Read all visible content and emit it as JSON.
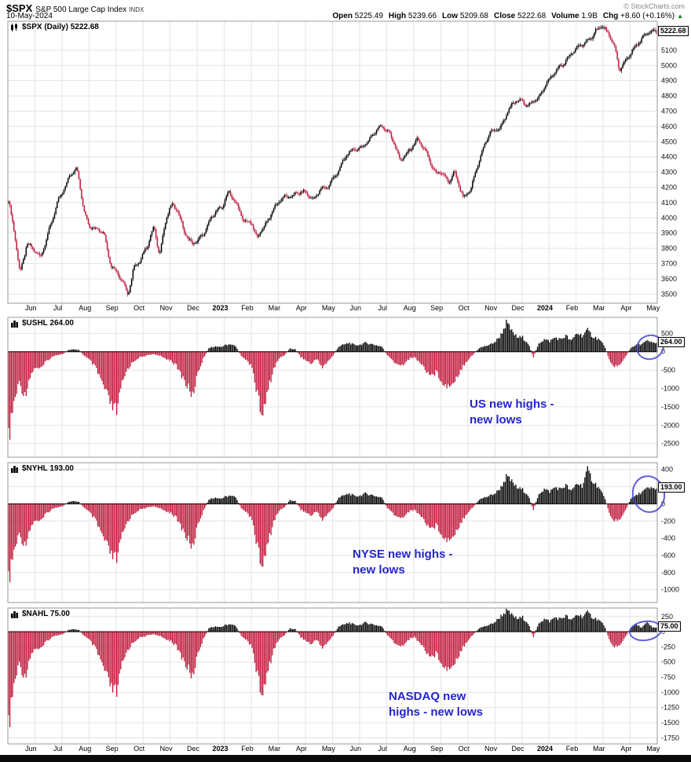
{
  "header": {
    "symbol": "$SPX",
    "name": "S&P 500 Large Cap Index",
    "exchange": "INDX",
    "date": "10-May-2024",
    "copyright": "© StockCharts.com",
    "quote": {
      "pairs": [
        {
          "label": "Open",
          "value": "5225.49"
        },
        {
          "label": "High",
          "value": "5239.66"
        },
        {
          "label": "Low",
          "value": "5209.68"
        },
        {
          "label": "Close",
          "value": "5222.68"
        },
        {
          "label": "Volume",
          "value": "1.9B"
        },
        {
          "label": "Chg",
          "value": "+8.60 (+0.16%)"
        }
      ],
      "arrow": "▲"
    }
  },
  "months": [
    "Jun",
    "Jul",
    "Aug",
    "Sep",
    "Oct",
    "Nov",
    "Dec",
    "2023",
    "Feb",
    "Mar",
    "Apr",
    "May",
    "Jun",
    "Jul",
    "Aug",
    "Sep",
    "Oct",
    "Nov",
    "Dec",
    "2024",
    "Feb",
    "Mar",
    "Apr",
    "May"
  ],
  "panels": {
    "spx": {
      "legend": "$SPX (Daily) 5222.68",
      "last_label": "5222.68"
    },
    "ushl": {
      "legend": "$USHL 264.00",
      "last_label": "264.00"
    },
    "nyhl": {
      "legend": "$NYHL 193.00",
      "last_label": "193.00"
    },
    "nahl": {
      "legend": "$NAHL 75.00",
      "last_label": "75.00"
    }
  },
  "annotations": {
    "ushl": {
      "line1": "US new highs -",
      "line2": "new lows"
    },
    "nyhl": {
      "line1": "NYSE new highs -",
      "line2": "new lows"
    },
    "nahl": {
      "line1": "NASDAQ new",
      "line2": "highs - new lows"
    }
  },
  "colors": {
    "up": "#000000",
    "down": "#bf1638",
    "grid": "#e4e4e4",
    "border": "#999999",
    "zero_line": "#000000",
    "annotation": "#2424cf",
    "ellipse": "#4444d4",
    "arrow_green": "#008800"
  },
  "chart_data": [
    {
      "id": "spx",
      "type": "candlestick",
      "title": "$SPX S&P 500 Large Cap Index (Daily)",
      "x_start": "Jun-2022",
      "x_end": "May-2024",
      "last": 5222.68,
      "day_ohlc": {
        "open": 5225.49,
        "high": 5239.66,
        "low": 5209.68,
        "close": 5222.68
      },
      "y_range": [
        3440,
        5290
      ],
      "y_ticks": [
        5100,
        5000,
        4900,
        4800,
        4700,
        4600,
        4500,
        4400,
        4300,
        4200,
        4100,
        4000,
        3900,
        3800,
        3700,
        3600,
        3500
      ],
      "anchors": [
        [
          0,
          4130
        ],
        [
          0.25,
          3900
        ],
        [
          0.45,
          3640
        ],
        [
          0.7,
          3820
        ],
        [
          0.95,
          3790
        ],
        [
          1.2,
          3750
        ],
        [
          1.5,
          3900
        ],
        [
          1.9,
          4130
        ],
        [
          2.3,
          4280
        ],
        [
          2.55,
          4320
        ],
        [
          2.8,
          4060
        ],
        [
          3.0,
          3955
        ],
        [
          3.3,
          3920
        ],
        [
          3.55,
          3900
        ],
        [
          3.8,
          3700
        ],
        [
          4.0,
          3650
        ],
        [
          4.2,
          3590
        ],
        [
          4.45,
          3495
        ],
        [
          4.65,
          3680
        ],
        [
          4.9,
          3720
        ],
        [
          5.15,
          3810
        ],
        [
          5.4,
          3950
        ],
        [
          5.6,
          3760
        ],
        [
          5.85,
          3990
        ],
        [
          6.05,
          4080
        ],
        [
          6.25,
          4070
        ],
        [
          6.55,
          3895
        ],
        [
          6.8,
          3820
        ],
        [
          7.0,
          3850
        ],
        [
          7.3,
          3920
        ],
        [
          7.6,
          4020
        ],
        [
          7.9,
          4070
        ],
        [
          8.15,
          4180
        ],
        [
          8.45,
          4080
        ],
        [
          8.7,
          3985
        ],
        [
          9.0,
          3975
        ],
        [
          9.2,
          3860
        ],
        [
          9.5,
          3950
        ],
        [
          9.8,
          4060
        ],
        [
          10.1,
          4120
        ],
        [
          10.4,
          4140
        ],
        [
          10.7,
          4170
        ],
        [
          11.0,
          4160
        ],
        [
          11.25,
          4120
        ],
        [
          11.55,
          4190
        ],
        [
          11.85,
          4200
        ],
        [
          12.1,
          4280
        ],
        [
          12.5,
          4410
        ],
        [
          12.9,
          4450
        ],
        [
          13.3,
          4500
        ],
        [
          13.8,
          4607
        ],
        [
          14.1,
          4570
        ],
        [
          14.5,
          4370
        ],
        [
          14.8,
          4440
        ],
        [
          15.1,
          4510
        ],
        [
          15.4,
          4450
        ],
        [
          15.8,
          4300
        ],
        [
          16.0,
          4290
        ],
        [
          16.3,
          4230
        ],
        [
          16.5,
          4310
        ],
        [
          16.85,
          4117
        ],
        [
          17.1,
          4180
        ],
        [
          17.4,
          4380
        ],
        [
          17.8,
          4550
        ],
        [
          18.2,
          4600
        ],
        [
          18.5,
          4700
        ],
        [
          18.8,
          4770
        ],
        [
          19.0,
          4770
        ],
        [
          19.3,
          4740
        ],
        [
          19.6,
          4780
        ],
        [
          19.9,
          4890
        ],
        [
          20.2,
          4950
        ],
        [
          20.5,
          5000
        ],
        [
          20.8,
          5080
        ],
        [
          21.1,
          5120
        ],
        [
          21.4,
          5150
        ],
        [
          21.7,
          5230
        ],
        [
          21.95,
          5254
        ],
        [
          22.2,
          5200
        ],
        [
          22.45,
          5120
        ],
        [
          22.6,
          4967
        ],
        [
          22.85,
          5030
        ],
        [
          23.1,
          5100
        ],
        [
          23.4,
          5180
        ],
        [
          23.7,
          5210
        ],
        [
          23.95,
          5222.68
        ]
      ]
    },
    {
      "id": "ushl",
      "type": "bar",
      "title": "US new highs - new lows ($USHL)",
      "x_start": "Jun-2022",
      "x_end": "May-2024",
      "samples_per_month": 5,
      "last": 264,
      "y_range": [
        -2870,
        935
      ],
      "y_ticks": [
        500,
        0,
        -500,
        -1000,
        -1500,
        -2000,
        -2500
      ],
      "values": [
        -2600,
        -1500,
        -900,
        -1300,
        -700,
        -450,
        -500,
        -280,
        -160,
        -90,
        -70,
        40,
        80,
        50,
        -120,
        -250,
        -450,
        -800,
        -1200,
        -1600,
        -1750,
        -950,
        -500,
        -300,
        -180,
        -140,
        -90,
        -70,
        -130,
        -200,
        -250,
        -420,
        -700,
        -1000,
        -1300,
        -600,
        -200,
        100,
        160,
        130,
        190,
        230,
        150,
        -110,
        -260,
        -420,
        -1300,
        -1900,
        -1100,
        -500,
        -200,
        -100,
        90,
        70,
        -150,
        -260,
        -360,
        -200,
        -460,
        -300,
        -100,
        150,
        210,
        260,
        190,
        210,
        260,
        230,
        190,
        150,
        -110,
        -260,
        -410,
        -360,
        -210,
        -160,
        -310,
        -510,
        -700,
        -600,
        -820,
        -1050,
        -900,
        -700,
        -410,
        -210,
        -60,
        110,
        160,
        210,
        300,
        500,
        850,
        600,
        420,
        420,
        260,
        -160,
        260,
        360,
        310,
        420,
        360,
        470,
        310,
        550,
        480,
        620,
        450,
        380,
        210,
        -210,
        -460,
        -360,
        -160,
        110,
        190,
        230,
        310,
        264
      ]
    },
    {
      "id": "nyhl",
      "type": "bar",
      "title": "NYSE new highs - new lows ($NYHL)",
      "x_start": "Jun-2022",
      "x_end": "May-2024",
      "samples_per_month": 5,
      "last": 193,
      "y_range": [
        -1150,
        480
      ],
      "y_ticks": [
        400,
        200,
        0,
        -200,
        -400,
        -600,
        -800,
        -1000
      ],
      "values": [
        -980,
        -600,
        -380,
        -520,
        -300,
        -200,
        -220,
        -120,
        -70,
        -40,
        -30,
        20,
        40,
        25,
        -50,
        -110,
        -200,
        -350,
        -500,
        -650,
        -700,
        -400,
        -220,
        -130,
        -80,
        -60,
        -40,
        -30,
        -60,
        -90,
        -110,
        -180,
        -300,
        -430,
        -550,
        -250,
        -90,
        50,
        80,
        60,
        90,
        110,
        80,
        -50,
        -110,
        -180,
        -560,
        -800,
        -480,
        -220,
        -90,
        -40,
        45,
        35,
        -70,
        -110,
        -150,
        -90,
        -200,
        -130,
        -50,
        80,
        105,
        130,
        95,
        105,
        130,
        115,
        95,
        80,
        -55,
        -115,
        -180,
        -160,
        -95,
        -75,
        -135,
        -225,
        -310,
        -270,
        -360,
        -470,
        -400,
        -310,
        -185,
        -95,
        -30,
        55,
        80,
        105,
        135,
        210,
        340,
        280,
        200,
        180,
        115,
        -75,
        130,
        185,
        155,
        210,
        185,
        235,
        155,
        260,
        230,
        420,
        290,
        210,
        105,
        -105,
        -225,
        -185,
        -85,
        65,
        105,
        150,
        190,
        193
      ]
    },
    {
      "id": "nahl",
      "type": "bar",
      "title": "NASDAQ new highs - new lows ($NAHL)",
      "x_start": "Jun-2022",
      "x_end": "May-2024",
      "samples_per_month": 5,
      "last": 75,
      "y_range": [
        -1850,
        390
      ],
      "y_ticks": [
        250,
        0,
        -250,
        -500,
        -750,
        -1000,
        -1250,
        -1500,
        -1750
      ],
      "values": [
        -1720,
        -950,
        -560,
        -820,
        -430,
        -290,
        -310,
        -175,
        -100,
        -60,
        -45,
        25,
        50,
        30,
        -75,
        -155,
        -290,
        -510,
        -760,
        -1010,
        -1090,
        -590,
        -325,
        -195,
        -115,
        -90,
        -55,
        -45,
        -85,
        -130,
        -160,
        -265,
        -445,
        -630,
        -810,
        -375,
        -135,
        60,
        95,
        75,
        115,
        140,
        95,
        -65,
        -155,
        -255,
        -800,
        -1150,
        -685,
        -315,
        -135,
        -60,
        55,
        45,
        -95,
        -165,
        -225,
        -135,
        -285,
        -195,
        -65,
        95,
        125,
        160,
        115,
        125,
        160,
        140,
        115,
        95,
        -65,
        -160,
        -265,
        -230,
        -135,
        -95,
        -195,
        -325,
        -455,
        -390,
        -525,
        -685,
        -585,
        -455,
        -265,
        -135,
        -40,
        65,
        95,
        125,
        180,
        280,
        370,
        300,
        230,
        255,
        155,
        -95,
        160,
        225,
        185,
        255,
        225,
        285,
        195,
        305,
        275,
        335,
        255,
        215,
        125,
        -125,
        -285,
        -225,
        -95,
        70,
        125,
        75,
        160,
        75
      ]
    }
  ]
}
